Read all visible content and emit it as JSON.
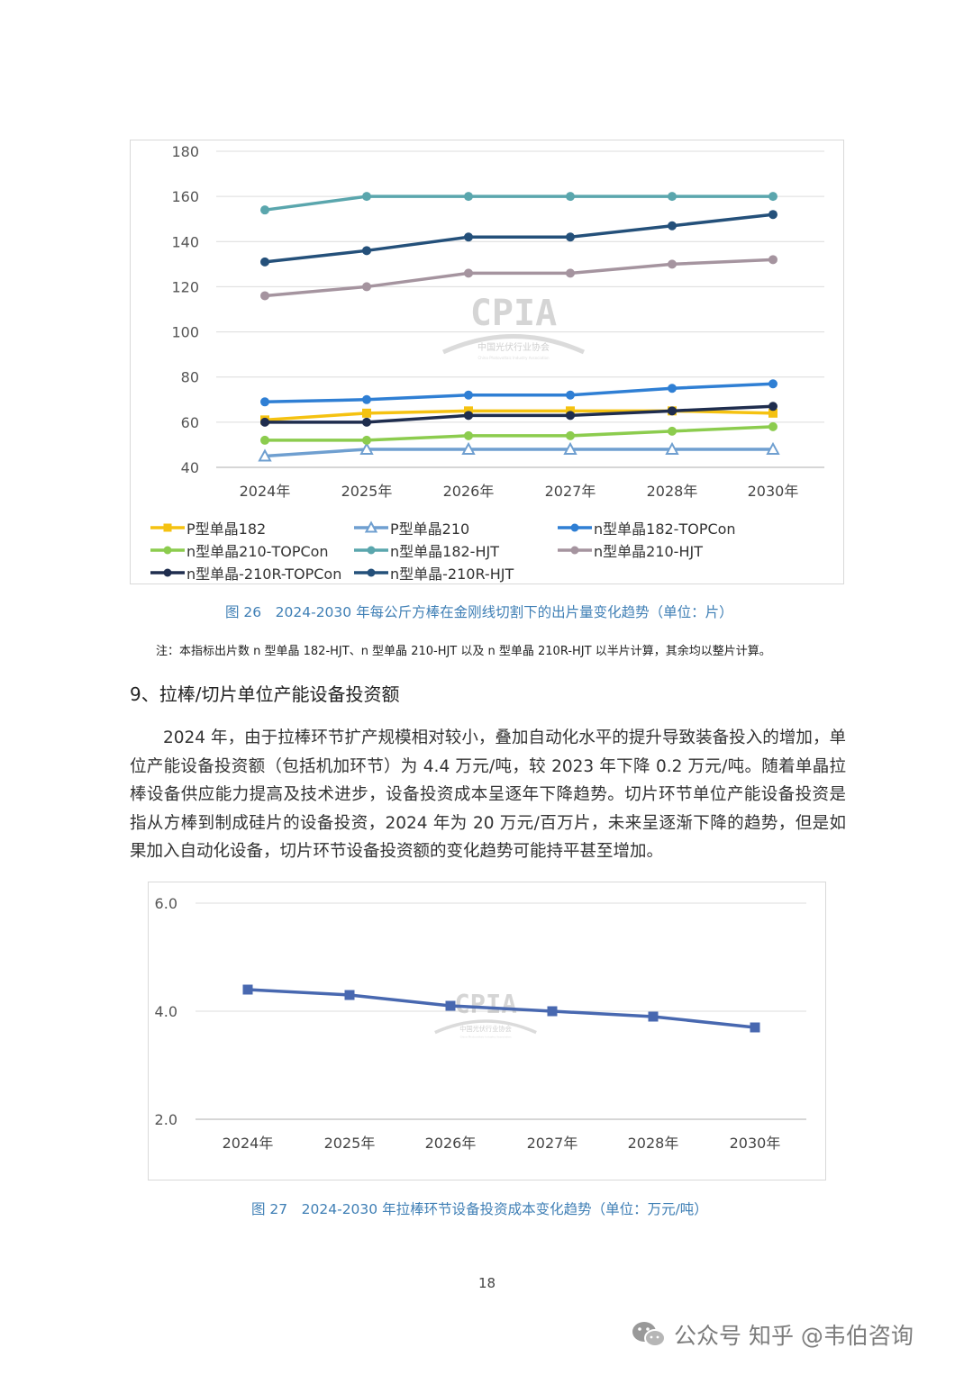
{
  "chart_data": [
    {
      "type": "line",
      "title": "",
      "categories": [
        "2024年",
        "2025年",
        "2026年",
        "2027年",
        "2028年",
        "2030年"
      ],
      "ylim": [
        40,
        180
      ],
      "yticks": [
        40,
        60,
        80,
        100,
        120,
        140,
        160,
        180
      ],
      "grid": true,
      "legend_position": "bottom",
      "series": [
        {
          "name": "P型单晶182",
          "color": "#f5c211",
          "marker": "square",
          "values": [
            61,
            64,
            65,
            65,
            65,
            64
          ]
        },
        {
          "name": "P型单晶210",
          "color": "#6f9fd0",
          "marker": "triangle-open",
          "values": [
            45,
            48,
            48,
            48,
            48,
            48
          ]
        },
        {
          "name": "n型单晶182-TOPCon",
          "color": "#2f7fd4",
          "marker": "circle",
          "values": [
            69,
            70,
            72,
            72,
            75,
            77
          ]
        },
        {
          "name": "n型单晶210-TOPCon",
          "color": "#8ccc4e",
          "marker": "circle",
          "values": [
            52,
            52,
            54,
            54,
            56,
            58
          ]
        },
        {
          "name": "n型单晶182-HJT",
          "color": "#5aa6ad",
          "marker": "circle",
          "values": [
            154,
            160,
            160,
            160,
            160,
            160
          ]
        },
        {
          "name": "n型单晶210-HJT",
          "color": "#a5949f",
          "marker": "circle",
          "values": [
            116,
            120,
            126,
            126,
            130,
            132
          ]
        },
        {
          "name": "n型单晶-210R-TOPCon",
          "color": "#1f2d4e",
          "marker": "circle",
          "values": [
            60,
            60,
            63,
            63,
            65,
            67
          ]
        },
        {
          "name": "n型单晶-210R-HJT",
          "color": "#24507a",
          "marker": "circle",
          "values": [
            131,
            136,
            142,
            142,
            147,
            152
          ]
        }
      ]
    },
    {
      "type": "line",
      "title": "",
      "categories": [
        "2024年",
        "2025年",
        "2026年",
        "2027年",
        "2028年",
        "2030年"
      ],
      "ylim": [
        2.0,
        6.0
      ],
      "yticks": [
        "2.0",
        "4.0",
        "6.0"
      ],
      "grid": true,
      "series": [
        {
          "name": "拉棒环节设备投资成本",
          "color": "#4868b0",
          "marker": "square",
          "values": [
            4.4,
            4.3,
            4.1,
            4.0,
            3.9,
            3.7
          ]
        }
      ]
    }
  ],
  "watermark": {
    "logo": "CPIA",
    "org": "中国光伏行业协会",
    "org_en": "China Photovoltaic Industry Association"
  },
  "fig26_caption": "图 26　2024-2030 年每公斤方棒在金刚线切割下的出片量变化趋势（单位：片）",
  "fig26_note": "注：本指标出片数 n 型单晶 182-HJT、n 型单晶 210-HJT 以及 n 型单晶 210R-HJT 以半片计算，其余均以整片计算。",
  "section_heading": "9、拉棒/切片单位产能设备投资额",
  "paragraph": "2024 年，由于拉棒环节扩产规模相对较小，叠加自动化水平的提升导致装备投入的增加，单位产能设备投资额（包括机加环节）为 4.4 万元/吨，较 2023 年下降 0.2 万元/吨。随着单晶拉棒设备供应能力提高及技术进步，设备投资成本呈逐年下降趋势。切片环节单位产能设备投资是指从方棒到制成硅片的设备投资，2024 年为 20 万元/百万片，未来呈逐渐下降的趋势，但是如果加入自动化设备，切片环节设备投资额的变化趋势可能持平甚至增加。",
  "fig27_caption": "图 27　2024-2030 年拉棒环节设备投资成本变化趋势（单位：万元/吨）",
  "page_number": "18",
  "footer_watermark": "公众号 知乎 @韦伯咨询",
  "icons": {
    "footer": "wechat-icon"
  }
}
